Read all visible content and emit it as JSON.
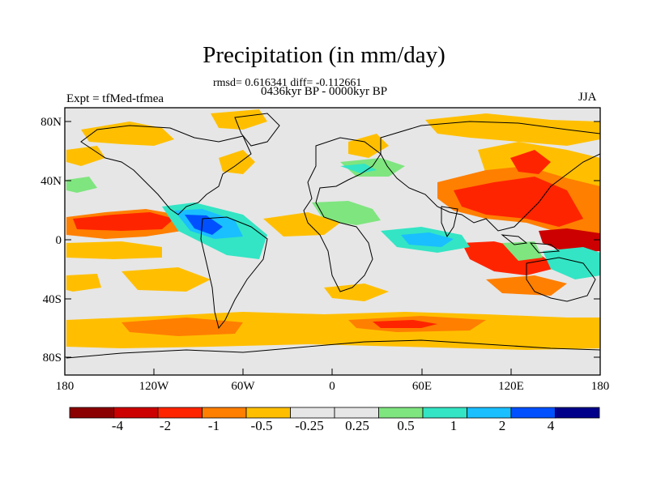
{
  "title": "Precipitation (in mm/day)",
  "stats": "rmsd= 0.616341 diff= -0.112661",
  "period": "0436kyr BP - 0000kyr BP",
  "experiment": "Expt = tfMed-tfmea",
  "season": "JJA",
  "y_ticks": [
    "80N",
    "40N",
    "0",
    "40S",
    "80S"
  ],
  "x_ticks": [
    "180",
    "120W",
    "60W",
    "0",
    "60E",
    "120E",
    "180"
  ],
  "colorbar": {
    "colors": [
      "#8b0000",
      "#cc0000",
      "#ff2400",
      "#ff7f00",
      "#ffbf00",
      "#e6e6e6",
      "#e6e6e6",
      "#7fe57f",
      "#33e5c4",
      "#19bfff",
      "#0050ff",
      "#00008b"
    ],
    "labels": [
      "-4",
      "-2",
      "-1",
      "-0.5",
      "-0.25",
      "0.25",
      "0.5",
      "1",
      "2",
      "4"
    ]
  },
  "colors": {
    "ocean_background": "#e6e6e6",
    "coastline": "#000000"
  }
}
